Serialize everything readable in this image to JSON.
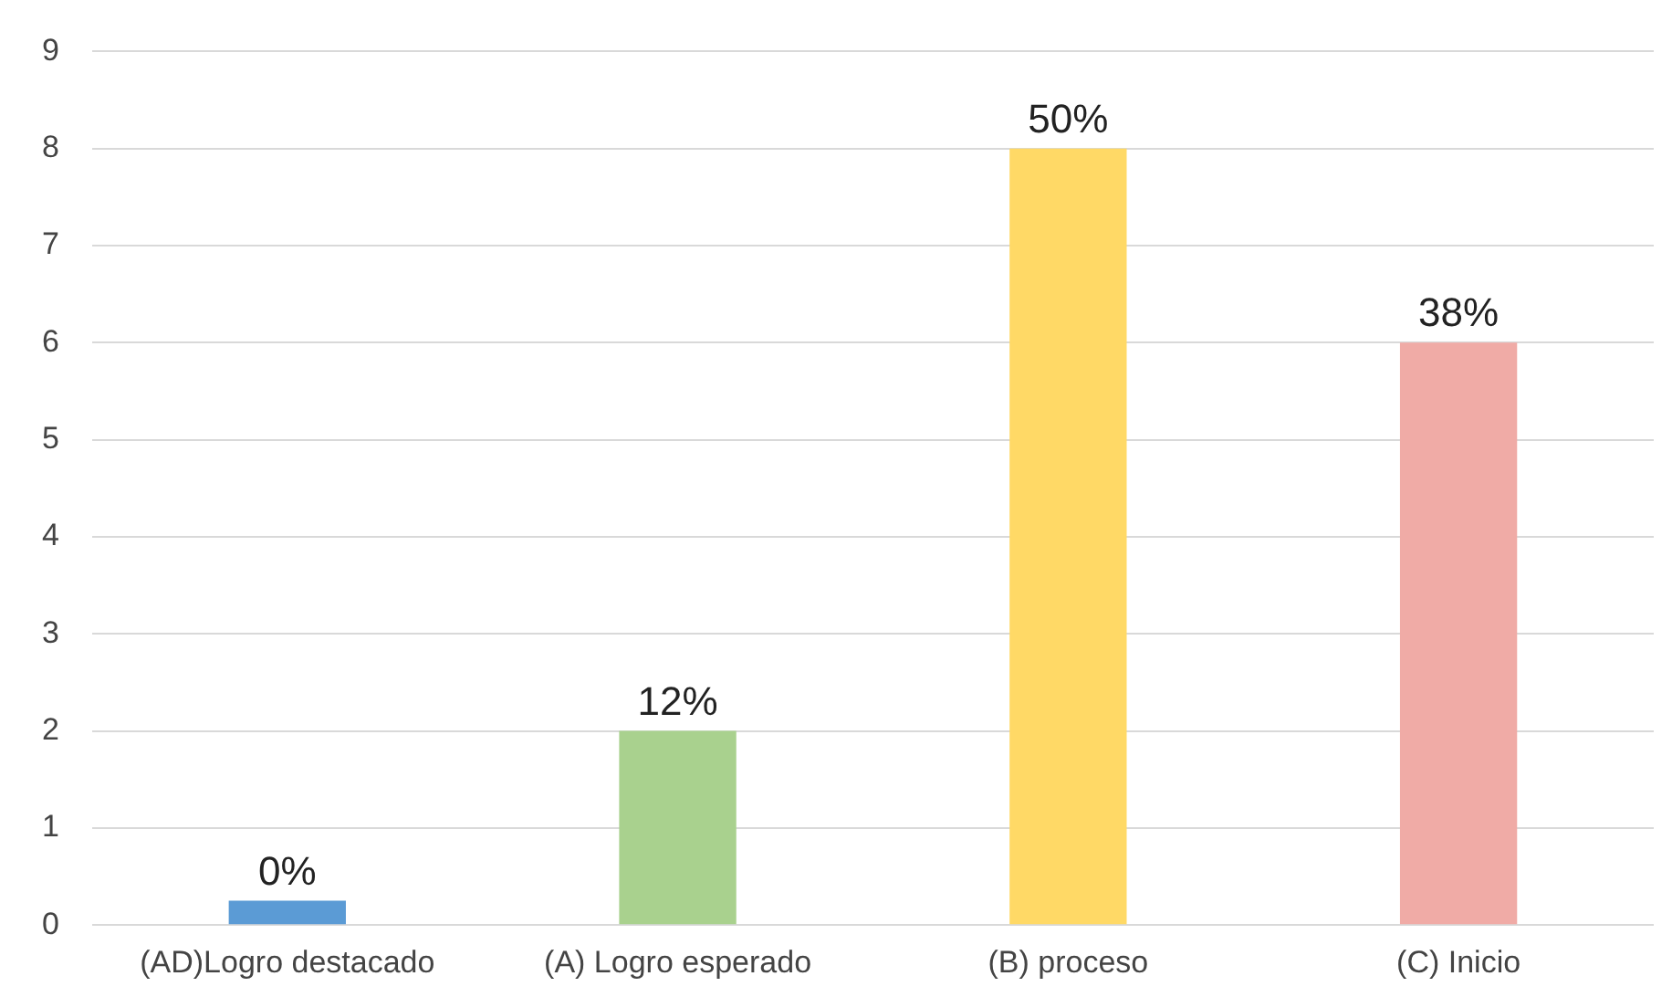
{
  "chart_data": {
    "type": "bar",
    "categories": [
      "(AD)Logro destacado",
      "(A) Logro esperado",
      "(B) proceso",
      "(C) Inicio"
    ],
    "values": [
      0.25,
      2,
      8,
      6
    ],
    "colors": [
      "#5b9bd5",
      "#a9d18e",
      "#ffd966",
      "#f0aba6"
    ],
    "annotations": [
      {
        "text": "0%",
        "x": "(AD)Logro destacado",
        "y": 0.25
      },
      {
        "text": "12%",
        "x": "(A) Logro esperado",
        "y": 2
      },
      {
        "text": "50%",
        "x": "(B) proceso",
        "y": 8
      },
      {
        "text": "38%",
        "x": "(C) Inicio",
        "y": 6
      }
    ],
    "ylim": [
      0,
      9
    ],
    "yticks": [
      0,
      1,
      2,
      3,
      4,
      5,
      6,
      7,
      8,
      9
    ],
    "grid": "y",
    "legend": false
  }
}
